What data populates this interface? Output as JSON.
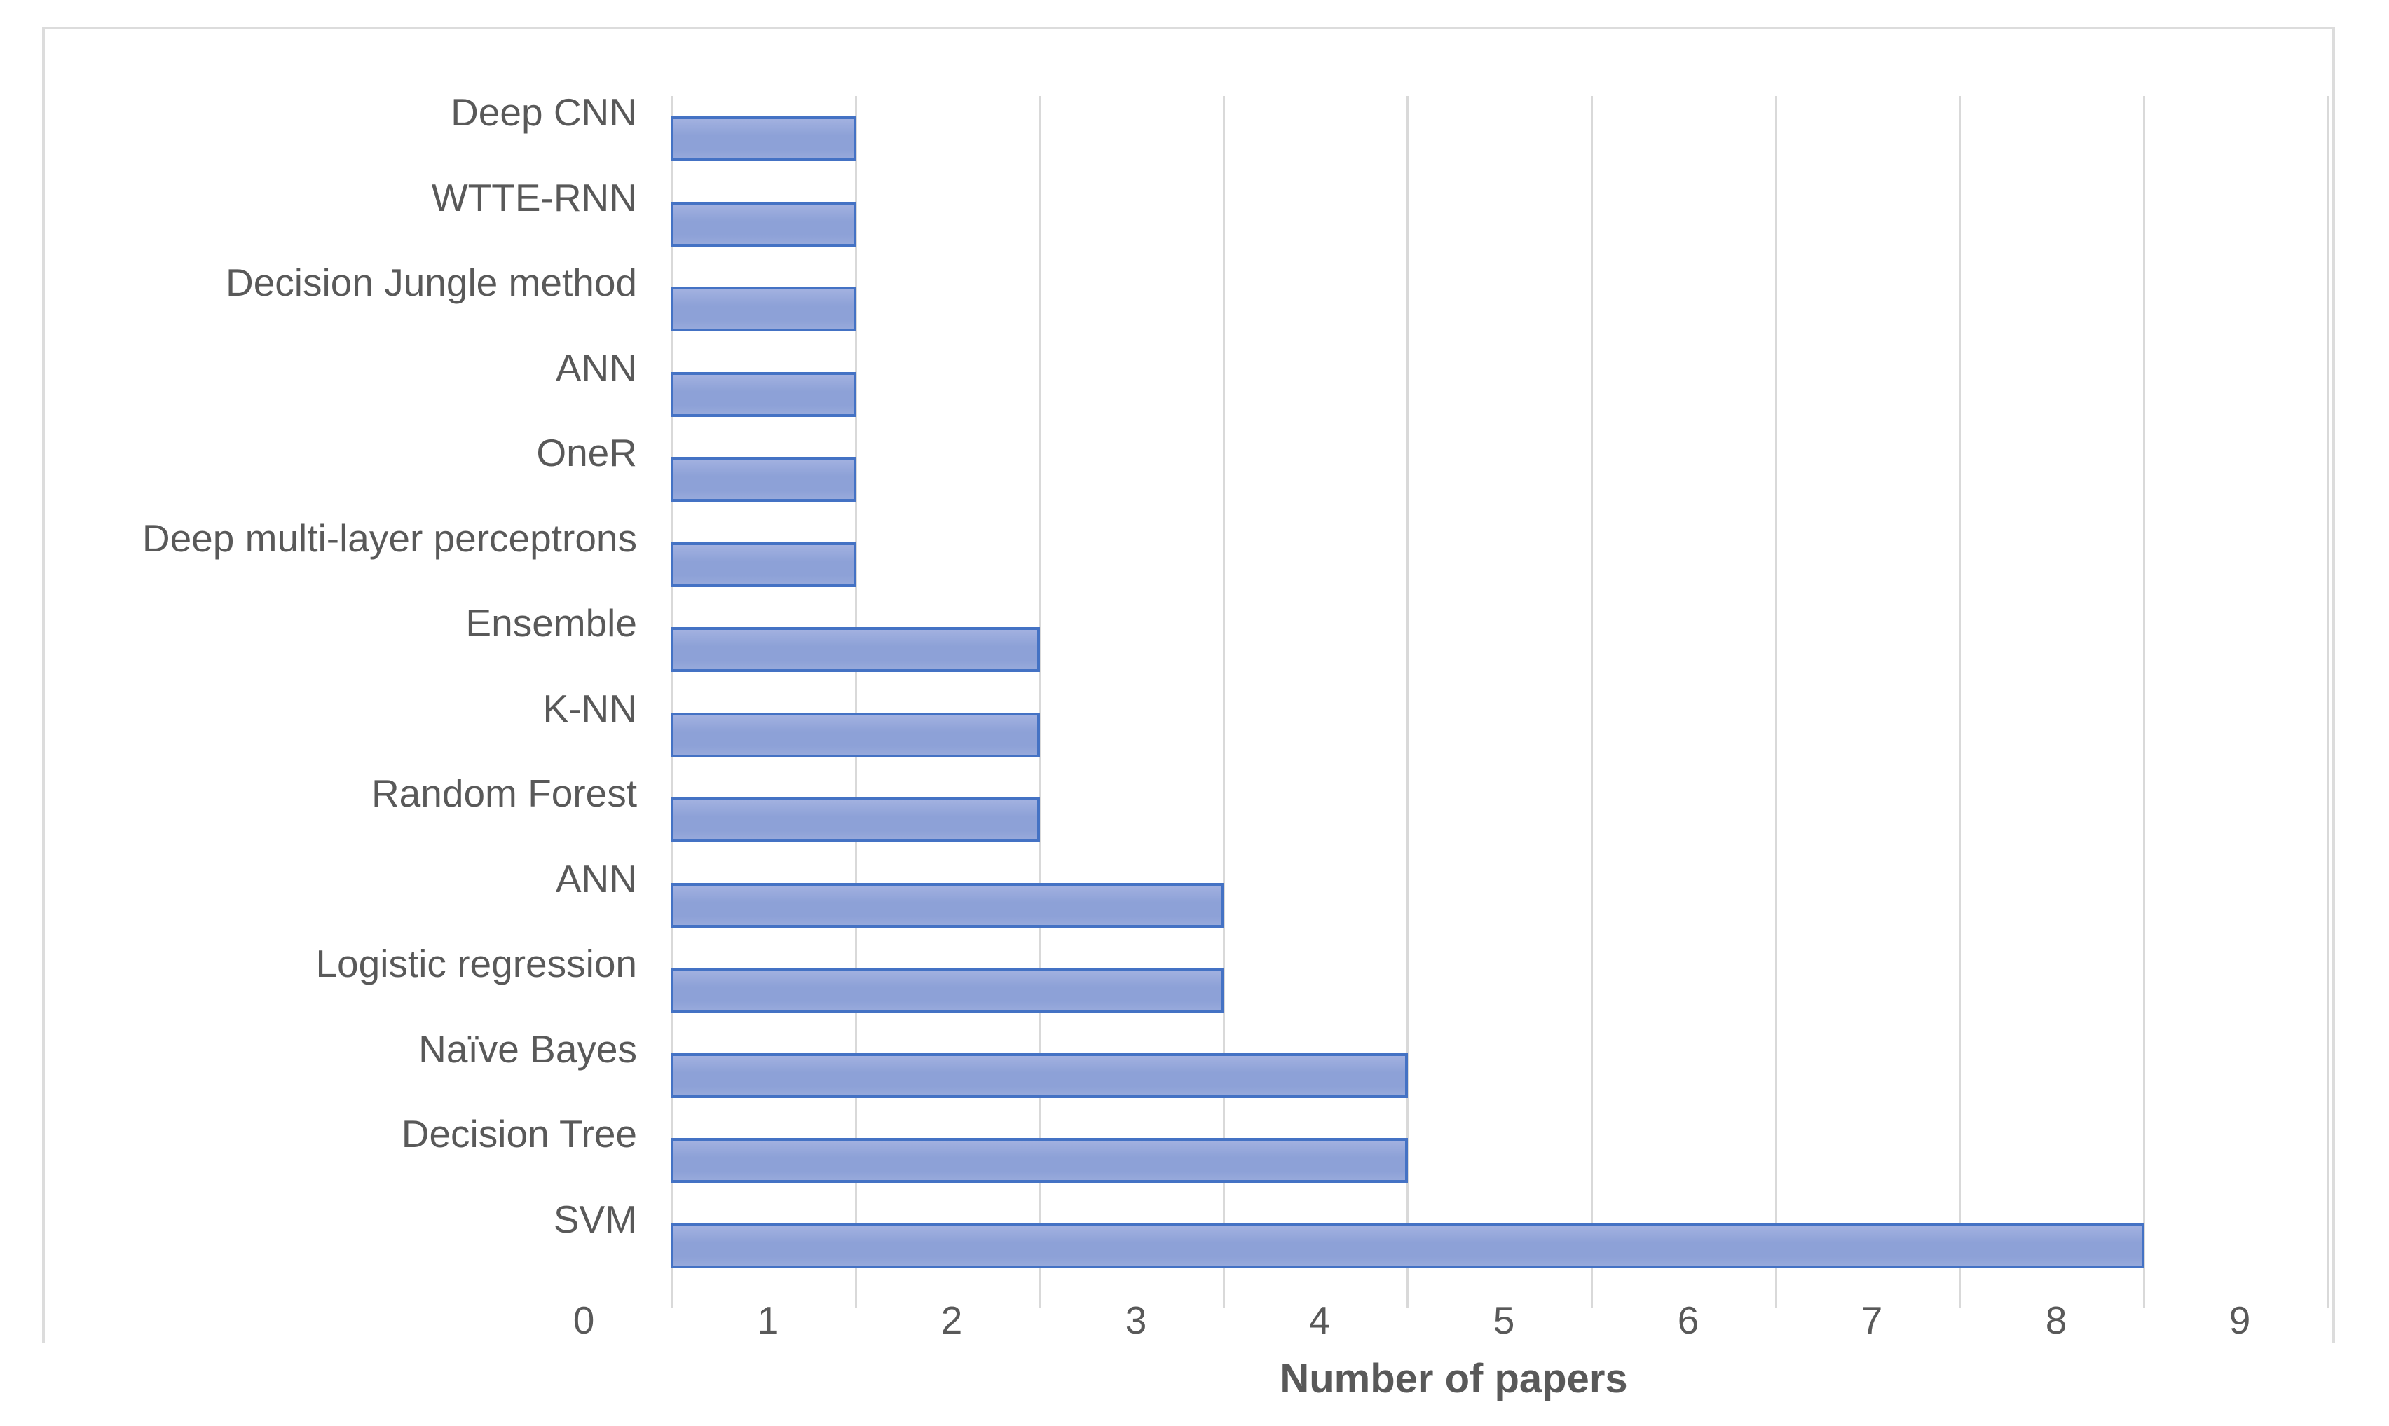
{
  "chart_data": {
    "type": "bar",
    "orientation": "horizontal",
    "title": "",
    "xlabel": "Number of papers",
    "ylabel": "",
    "xlim": [
      0,
      9
    ],
    "x_ticks": [
      0,
      1,
      2,
      3,
      4,
      5,
      6,
      7,
      8,
      9
    ],
    "grid": "vertical-gridlines-on",
    "legend": "none",
    "categories_top_to_bottom": [
      "Deep CNN",
      "WTTE-RNN",
      "Decision Jungle method",
      "ANN",
      "OneR",
      "Deep multi-layer perceptrons",
      "Ensemble",
      "K-NN",
      "Random Forest",
      "ANN",
      "Logistic regression",
      "Naïve Bayes",
      "Decision Tree",
      "SVM"
    ],
    "values": [
      1,
      1,
      1,
      1,
      1,
      1,
      2,
      2,
      2,
      3,
      3,
      4,
      4,
      8
    ],
    "colors": {
      "bar_fill": "#8da1d7",
      "bar_fill_light": "#a2b1e0",
      "bar_border": "#4472c4",
      "gridline": "#d9d9d9",
      "chart_frame_border": "#dcdcdc",
      "label_text": "#595959"
    }
  }
}
